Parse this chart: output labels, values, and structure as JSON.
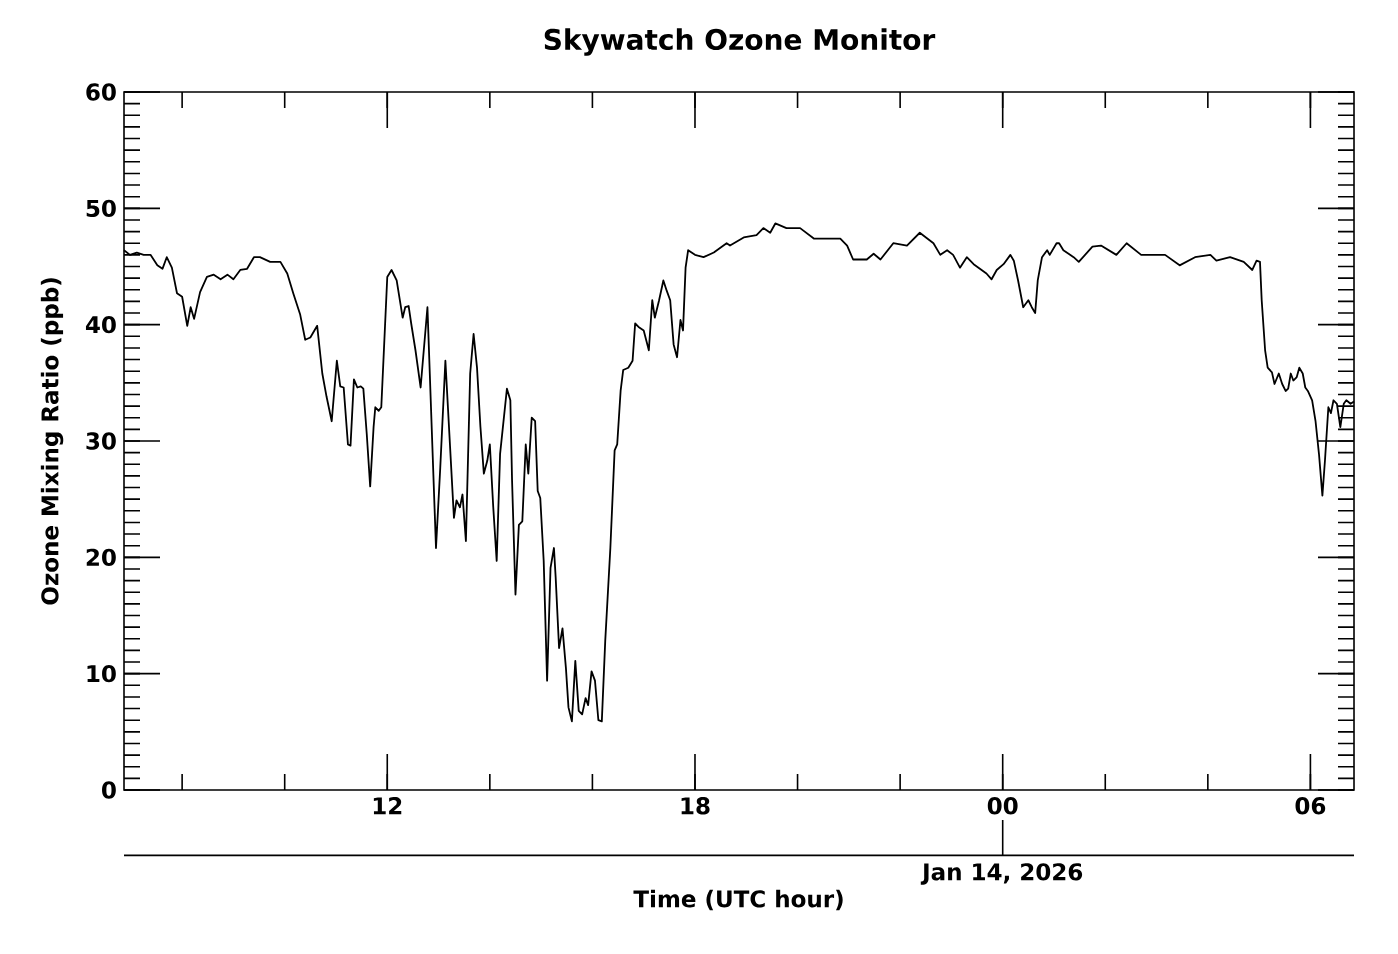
{
  "chart_data": {
    "type": "line",
    "title": "Skywatch Ozone Monitor",
    "xlabel": "Time (UTC hour)",
    "ylabel": "Ozone Mixing Ratio (ppb)",
    "xlim": [
      "2026-01-13T06:52",
      "2026-01-14T06:51"
    ],
    "ylim": [
      0,
      60
    ],
    "xticks": [
      {
        "value": "2026-01-13T08:00",
        "label": null
      },
      {
        "value": "2026-01-13T10:00",
        "label": null
      },
      {
        "value": "2026-01-13T12:00",
        "label": "12"
      },
      {
        "value": "2026-01-13T14:00",
        "label": null
      },
      {
        "value": "2026-01-13T16:00",
        "label": null
      },
      {
        "value": "2026-01-13T18:00",
        "label": "18"
      },
      {
        "value": "2026-01-13T20:00",
        "label": null
      },
      {
        "value": "2026-01-13T22:00",
        "label": null
      },
      {
        "value": "2026-01-14T00:00",
        "label": "00"
      },
      {
        "value": "2026-01-14T02:00",
        "label": null
      },
      {
        "value": "2026-01-14T04:00",
        "label": null
      },
      {
        "value": "2026-01-14T06:00",
        "label": "06"
      }
    ],
    "yticks": [
      0,
      {
        "value": 1,
        "label": null
      },
      {
        "value": 2,
        "label": null
      },
      {
        "value": 3,
        "label": null
      },
      {
        "value": 4,
        "label": null
      },
      {
        "value": 5,
        "label": null
      },
      {
        "value": 6,
        "label": null
      },
      {
        "value": 7,
        "label": null
      },
      {
        "value": 8,
        "label": null
      },
      {
        "value": 9,
        "label": null
      },
      10,
      {
        "value": 11,
        "label": null
      },
      {
        "value": 12,
        "label": null
      },
      {
        "value": 13,
        "label": null
      },
      {
        "value": 14,
        "label": null
      },
      {
        "value": 15,
        "label": null
      },
      {
        "value": 16,
        "label": null
      },
      {
        "value": 17,
        "label": null
      },
      {
        "value": 18,
        "label": null
      },
      {
        "value": 19,
        "label": null
      },
      20,
      {
        "value": 21,
        "label": null
      },
      {
        "value": 22,
        "label": null
      },
      {
        "value": 23,
        "label": null
      },
      {
        "value": 24,
        "label": null
      },
      {
        "value": 25,
        "label": null
      },
      {
        "value": 26,
        "label": null
      },
      {
        "value": 27,
        "label": null
      },
      {
        "value": 28,
        "label": null
      },
      {
        "value": 29,
        "label": null
      },
      30,
      {
        "value": 31,
        "label": null
      },
      {
        "value": 32,
        "label": null
      },
      {
        "value": 33,
        "label": null
      },
      {
        "value": 34,
        "label": null
      },
      {
        "value": 35,
        "label": null
      },
      {
        "value": 36,
        "label": null
      },
      {
        "value": 37,
        "label": null
      },
      {
        "value": 38,
        "label": null
      },
      {
        "value": 39,
        "label": null
      },
      40,
      {
        "value": 41,
        "label": null
      },
      {
        "value": 42,
        "label": null
      },
      {
        "value": 43,
        "label": null
      },
      {
        "value": 44,
        "label": null
      },
      {
        "value": 45,
        "label": null
      },
      {
        "value": 46,
        "label": null
      },
      {
        "value": 47,
        "label": null
      },
      {
        "value": 48,
        "label": null
      },
      {
        "value": 49,
        "label": null
      },
      50,
      {
        "value": 51,
        "label": null
      },
      {
        "value": 52,
        "label": null
      },
      {
        "value": 53,
        "label": null
      },
      {
        "value": 54,
        "label": null
      },
      {
        "value": 55,
        "label": null
      },
      {
        "value": 56,
        "label": null
      },
      {
        "value": 57,
        "label": null
      },
      {
        "value": 58,
        "label": null
      },
      {
        "value": 59,
        "label": null
      },
      60
    ],
    "annotations": [
      {
        "text": "Jan 14, 2026",
        "x": "2026-01-14T00:00"
      }
    ],
    "x": [
      "2026-01-13T06:52",
      "2026-01-13T06:59",
      "2026-01-13T07:07",
      "2026-01-13T07:15",
      "2026-01-13T07:23",
      "2026-01-13T07:31",
      "2026-01-13T07:37",
      "2026-01-13T07:42",
      "2026-01-13T07:48",
      "2026-01-13T07:54",
      "2026-01-13T08:00",
      "2026-01-13T08:06",
      "2026-01-13T08:10",
      "2026-01-13T08:14",
      "2026-01-13T08:21",
      "2026-01-13T08:29",
      "2026-01-13T08:37",
      "2026-01-13T08:45",
      "2026-01-13T08:53",
      "2026-01-13T09:00",
      "2026-01-13T09:08",
      "2026-01-13T09:16",
      "2026-01-13T09:24",
      "2026-01-13T09:31",
      "2026-01-13T09:43",
      "2026-01-13T09:55",
      "2026-01-13T10:03",
      "2026-01-13T10:10",
      "2026-01-13T10:18",
      "2026-01-13T10:24",
      "2026-01-13T10:30",
      "2026-01-13T10:38",
      "2026-01-13T10:44",
      "2026-01-13T10:49",
      "2026-01-13T10:55",
      "2026-01-13T11:01",
      "2026-01-13T11:05",
      "2026-01-13T11:09",
      "2026-01-13T11:14",
      "2026-01-13T11:17",
      "2026-01-13T11:21",
      "2026-01-13T11:25",
      "2026-01-13T11:29",
      "2026-01-13T11:32",
      "2026-01-13T11:36",
      "2026-01-13T11:40",
      "2026-01-13T11:44",
      "2026-01-13T11:46",
      "2026-01-13T11:50",
      "2026-01-13T11:53",
      "2026-01-13T12:00",
      "2026-01-13T12:05",
      "2026-01-13T12:11",
      "2026-01-13T12:18",
      "2026-01-13T12:21",
      "2026-01-13T12:25",
      "2026-01-13T12:28",
      "2026-01-13T12:33",
      "2026-01-13T12:39",
      "2026-01-13T12:47",
      "2026-01-13T12:57",
      "2026-01-13T13:02",
      "2026-01-13T13:08",
      "2026-01-13T13:18",
      "2026-01-13T13:21",
      "2026-01-13T13:25",
      "2026-01-13T13:28",
      "2026-01-13T13:32",
      "2026-01-13T13:37",
      "2026-01-13T13:41",
      "2026-01-13T13:45",
      "2026-01-13T13:49",
      "2026-01-13T13:53",
      "2026-01-13T13:57",
      "2026-01-13T14:00",
      "2026-01-13T14:04",
      "2026-01-13T14:08",
      "2026-01-13T14:12",
      "2026-01-13T14:16",
      "2026-01-13T14:20",
      "2026-01-13T14:24",
      "2026-01-13T14:26",
      "2026-01-13T14:30",
      "2026-01-13T14:34",
      "2026-01-13T14:38",
      "2026-01-13T14:42",
      "2026-01-13T14:45",
      "2026-01-13T14:49",
      "2026-01-13T14:53",
      "2026-01-13T14:56",
      "2026-01-13T14:59",
      "2026-01-13T15:03",
      "2026-01-13T15:07",
      "2026-01-13T15:11",
      "2026-01-13T15:15",
      "2026-01-13T15:17",
      "2026-01-13T15:21",
      "2026-01-13T15:25",
      "2026-01-13T15:29",
      "2026-01-13T15:32",
      "2026-01-13T15:36",
      "2026-01-13T15:40",
      "2026-01-13T15:44",
      "2026-01-13T15:48",
      "2026-01-13T15:52",
      "2026-01-13T15:55",
      "2026-01-13T15:59",
      "2026-01-13T16:03",
      "2026-01-13T16:07",
      "2026-01-13T16:11",
      "2026-01-13T16:15",
      "2026-01-13T16:21",
      "2026-01-13T16:26",
      "2026-01-13T16:29",
      "2026-01-13T16:33",
      "2026-01-13T16:36",
      "2026-01-13T16:42",
      "2026-01-13T16:47",
      "2026-01-13T16:50",
      "2026-01-13T16:54",
      "2026-01-13T17:00",
      "2026-01-13T17:06",
      "2026-01-13T17:10",
      "2026-01-13T17:13",
      "2026-01-13T17:18",
      "2026-01-13T17:23",
      "2026-01-13T17:27",
      "2026-01-13T17:31",
      "2026-01-13T17:35",
      "2026-01-13T17:39",
      "2026-01-13T17:43",
      "2026-01-13T17:46",
      "2026-01-13T17:49",
      "2026-01-13T17:52",
      "2026-01-13T18:00",
      "2026-01-13T18:10",
      "2026-01-13T18:22",
      "2026-01-13T18:37",
      "2026-01-13T18:41",
      "2026-01-13T18:57",
      "2026-01-13T19:12",
      "2026-01-13T19:20",
      "2026-01-13T19:28",
      "2026-01-13T19:34",
      "2026-01-13T19:47",
      "2026-01-13T20:03",
      "2026-01-13T20:19",
      "2026-01-13T20:34",
      "2026-01-13T20:50",
      "2026-01-13T20:58",
      "2026-01-13T21:05",
      "2026-01-13T21:21",
      "2026-01-13T21:29",
      "2026-01-13T21:37",
      "2026-01-13T21:52",
      "2026-01-13T22:08",
      "2026-01-13T22:23",
      "2026-01-13T22:39",
      "2026-01-13T22:47",
      "2026-01-13T22:55",
      "2026-01-13T23:02",
      "2026-01-13T23:10",
      "2026-01-13T23:18",
      "2026-01-13T23:26",
      "2026-01-13T23:41",
      "2026-01-13T23:47",
      "2026-01-13T23:53",
      "2026-01-14T00:01",
      "2026-01-14T00:09",
      "2026-01-14T00:13",
      "2026-01-14T00:18",
      "2026-01-14T00:24",
      "2026-01-14T00:30",
      "2026-01-14T00:34",
      "2026-01-14T00:38",
      "2026-01-14T00:41",
      "2026-01-14T00:46",
      "2026-01-14T00:52",
      "2026-01-14T00:55",
      "2026-01-14T01:03",
      "2026-01-14T01:06",
      "2026-01-14T01:11",
      "2026-01-14T01:23",
      "2026-01-14T01:29",
      "2026-01-14T01:45",
      "2026-01-14T01:55",
      "2026-01-14T02:13",
      "2026-01-14T02:25",
      "2026-01-14T02:42",
      "2026-01-14T02:55",
      "2026-01-14T03:10",
      "2026-01-14T03:27",
      "2026-01-14T03:45",
      "2026-01-14T04:03",
      "2026-01-14T04:10",
      "2026-01-14T04:26",
      "2026-01-14T04:42",
      "2026-01-14T04:52",
      "2026-01-14T04:57",
      "2026-01-14T05:01",
      "2026-01-14T05:03",
      "2026-01-14T05:07",
      "2026-01-14T05:10",
      "2026-01-14T05:15",
      "2026-01-14T05:18",
      "2026-01-14T05:23",
      "2026-01-14T05:27",
      "2026-01-14T05:31",
      "2026-01-14T05:34",
      "2026-01-14T05:37",
      "2026-01-14T05:40",
      "2026-01-14T05:44",
      "2026-01-14T05:47",
      "2026-01-14T05:51",
      "2026-01-14T05:54",
      "2026-01-14T05:57",
      "2026-01-14T06:02",
      "2026-01-14T06:06",
      "2026-01-14T06:10",
      "2026-01-14T06:14",
      "2026-01-14T06:17",
      "2026-01-14T06:21",
      "2026-01-14T06:24",
      "2026-01-14T06:27",
      "2026-01-14T06:31",
      "2026-01-14T06:35",
      "2026-01-14T06:39",
      "2026-01-14T06:42",
      "2026-01-14T06:47",
      "2026-01-14T06:51"
    ],
    "series": [
      {
        "color": "#000000",
        "values": [
          46.4,
          46.0,
          46.2,
          46.0,
          46.0,
          45.1,
          44.8,
          45.8,
          44.9,
          42.7,
          42.4,
          39.9,
          41.5,
          40.5,
          42.8,
          44.1,
          44.3,
          43.9,
          44.3,
          43.9,
          44.7,
          44.8,
          45.8,
          45.8,
          45.4,
          45.4,
          44.4,
          42.7,
          40.9,
          38.7,
          38.9,
          39.9,
          35.8,
          33.8,
          31.7,
          36.9,
          34.7,
          34.6,
          29.7,
          29.6,
          35.3,
          34.6,
          34.7,
          34.5,
          30.6,
          26.1,
          31.2,
          32.9,
          32.6,
          32.9,
          44.1,
          44.7,
          43.8,
          40.6,
          41.5,
          41.6,
          40.1,
          37.8,
          34.6,
          41.5,
          20.8,
          27.7,
          36.9,
          23.4,
          24.9,
          24.3,
          25.4,
          21.4,
          35.8,
          39.2,
          36.3,
          31.2,
          27.2,
          28.3,
          29.7,
          24.3,
          19.7,
          28.9,
          31.7,
          34.5,
          33.5,
          26.6,
          16.8,
          22.8,
          23.1,
          29.7,
          27.2,
          32.0,
          31.7,
          25.7,
          25.1,
          19.7,
          9.4,
          19.1,
          20.8,
          18.3,
          12.2,
          13.9,
          10.5,
          7.1,
          5.9,
          11.1,
          6.8,
          6.5,
          7.9,
          7.3,
          10.2,
          9.4,
          6.0,
          5.9,
          12.8,
          20.8,
          29.2,
          29.7,
          34.3,
          36.1,
          36.3,
          36.9,
          40.1,
          39.8,
          39.5,
          37.8,
          42.1,
          40.6,
          42.1,
          43.8,
          42.9,
          42.1,
          38.3,
          37.2,
          40.4,
          39.5,
          44.9,
          46.4,
          46.0,
          45.8,
          46.2,
          47.0,
          46.8,
          47.5,
          47.7,
          48.3,
          47.9,
          48.7,
          48.3,
          48.3,
          47.4,
          47.4,
          47.4,
          46.8,
          45.6,
          45.6,
          46.1,
          45.6,
          47.0,
          46.8,
          47.9,
          47.0,
          46.0,
          46.4,
          46.0,
          44.9,
          45.8,
          45.2,
          44.4,
          43.9,
          44.7,
          45.2,
          46.0,
          45.5,
          43.8,
          41.5,
          42.1,
          41.5,
          41.0,
          43.8,
          45.8,
          46.4,
          46.0,
          47.0,
          47.0,
          46.4,
          45.8,
          45.4,
          46.7,
          46.8,
          46.0,
          47.0,
          46.0,
          46.0,
          46.0,
          45.1,
          45.8,
          46.0,
          45.5,
          45.8,
          45.4,
          44.7,
          45.5,
          45.4,
          42.1,
          37.8,
          36.3,
          35.9,
          34.9,
          35.8,
          34.9,
          34.3,
          34.5,
          35.8,
          35.2,
          35.5,
          36.3,
          35.8,
          34.6,
          34.3,
          33.5,
          31.7,
          28.9,
          25.3,
          28.3,
          32.9,
          32.4,
          33.5,
          33.2,
          31.2,
          33.2,
          33.5,
          33.2,
          33.4
        ]
      }
    ]
  }
}
